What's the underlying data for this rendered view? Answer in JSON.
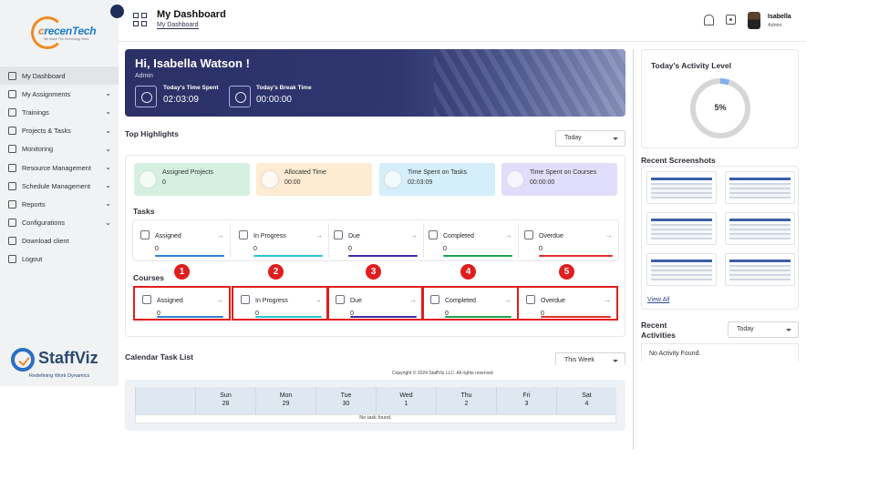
{
  "sidebar": {
    "items": [
      {
        "label": "My Dashboard",
        "icon": "dashboard-icon",
        "has_chevron": false
      },
      {
        "label": "My Assignments",
        "icon": "assignments-icon",
        "has_chevron": true
      },
      {
        "label": "Trainings",
        "icon": "trainings-icon",
        "has_chevron": true
      },
      {
        "label": "Projects & Tasks",
        "icon": "projects-icon",
        "has_chevron": true
      },
      {
        "label": "Monitoring",
        "icon": "monitoring-icon",
        "has_chevron": true
      },
      {
        "label": "Resource Management",
        "icon": "resource-icon",
        "has_chevron": true
      },
      {
        "label": "Schedule Management",
        "icon": "schedule-icon",
        "has_chevron": true
      },
      {
        "label": "Reports",
        "icon": "reports-icon",
        "has_chevron": true
      },
      {
        "label": "Configurations",
        "icon": "configurations-icon",
        "has_chevron": true
      },
      {
        "label": "Download client",
        "icon": "download-icon",
        "has_chevron": false
      },
      {
        "label": "Logout",
        "icon": "logout-icon",
        "has_chevron": false
      }
    ],
    "brand_top": {
      "prefix": "c",
      "rest": "recenTech",
      "tagline": "We Make The Technology Work"
    },
    "brand_bottom": {
      "name": "StaffViz",
      "tagline": "Redefining Work Dynamics"
    }
  },
  "header": {
    "title": "My Dashboard",
    "breadcrumb": "My Dashboard",
    "user": {
      "name": "Isabella",
      "role": "Admin"
    }
  },
  "banner": {
    "greeting": "Hi, Isabella Watson !",
    "role": "Admin",
    "time_spent_label": "Today's Time Spent",
    "time_spent_value": "02:03:09",
    "break_label": "Today's Break Time",
    "break_value": "00:00:00"
  },
  "highlights": {
    "title": "Top Highlights",
    "filter": "Today",
    "cards": [
      {
        "label": "Assigned Projects",
        "value": "0",
        "bg": "#d5f0e1"
      },
      {
        "label": "Allocated Time",
        "value": "00:00",
        "bg": "#fdebd2"
      },
      {
        "label": "Time Spent on Tasks",
        "value": "02:03:09",
        "bg": "#d4eefa"
      },
      {
        "label": "Time Spent on Courses",
        "value": "00:00:00",
        "bg": "#e1defb"
      }
    ]
  },
  "tasks": {
    "title": "Tasks",
    "cards": [
      {
        "label": "Assigned",
        "value": "0",
        "color": "#2f7fd6"
      },
      {
        "label": "In Progress",
        "value": "0",
        "color": "#22c6d8"
      },
      {
        "label": "Due",
        "value": "0",
        "color": "#3b2ea8"
      },
      {
        "label": "Completed",
        "value": "0",
        "color": "#1ea352"
      },
      {
        "label": "Overdue",
        "value": "0",
        "color": "#e0302a"
      }
    ]
  },
  "courses": {
    "title": "Courses",
    "cards": [
      {
        "label": "Assigned",
        "value": "0",
        "color": "#2f7fd6"
      },
      {
        "label": "In Progress",
        "value": "0",
        "color": "#22c6d8"
      },
      {
        "label": "Due",
        "value": "0",
        "color": "#3b2ea8"
      },
      {
        "label": "Completed",
        "value": "0",
        "color": "#1ea352"
      },
      {
        "label": "Overdue",
        "value": "0",
        "color": "#e0302a"
      }
    ],
    "markers": [
      "1",
      "2",
      "3",
      "4",
      "5"
    ]
  },
  "calendar": {
    "title": "Calendar Task List",
    "filter": "This Week",
    "days": [
      {
        "day": "Sun",
        "date": "28"
      },
      {
        "day": "Mon",
        "date": "29"
      },
      {
        "day": "Tue",
        "date": "30"
      },
      {
        "day": "Wed",
        "date": "1"
      },
      {
        "day": "Thu",
        "date": "2"
      },
      {
        "day": "Fri",
        "date": "3"
      },
      {
        "day": "Sat",
        "date": "4"
      }
    ],
    "empty": "No task found."
  },
  "footer": {
    "copyright": "Copyright © 2024 StaffViz LLC. All rights reserved"
  },
  "activity": {
    "title": "Today's Activity Level",
    "value": "5%",
    "fraction": 0.05
  },
  "screenshots": {
    "title": "Recent Screenshots",
    "view_all": "View All",
    "count": 6
  },
  "recent_activities": {
    "title": "Recent Activities",
    "filter": "Today",
    "empty": "No Activity Found."
  }
}
